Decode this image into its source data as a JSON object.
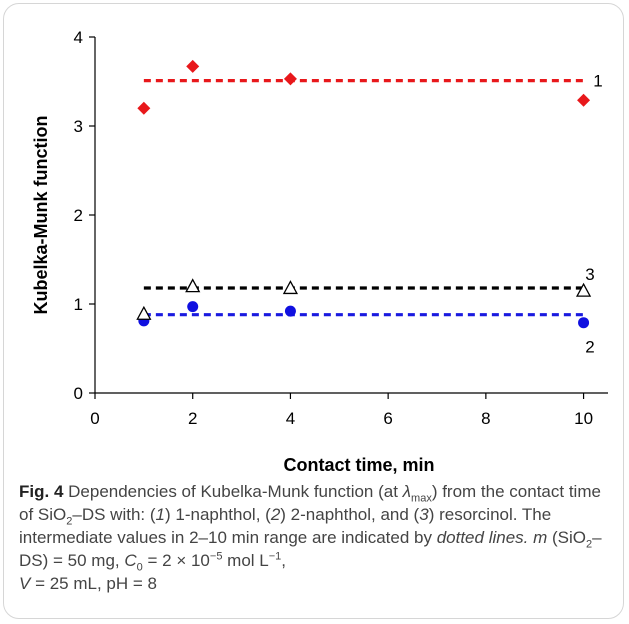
{
  "chart_data": {
    "type": "scatter",
    "xlabel": "Contact time, min",
    "ylabel": "Kubelka-Munk function",
    "xlim": [
      0,
      10.5
    ],
    "ylim": [
      0,
      4
    ],
    "x_ticks": [
      0,
      2,
      4,
      6,
      8,
      10
    ],
    "y_ticks": [
      0,
      1,
      2,
      3,
      4
    ],
    "grid": false,
    "legend": "none",
    "series": [
      {
        "name": "1",
        "marker": "diamond",
        "color": "#e8181b",
        "x": [
          1,
          2,
          4,
          10
        ],
        "y": [
          3.2,
          3.67,
          3.53,
          3.29
        ],
        "mean_line": {
          "y": 3.51,
          "x_range": [
            1,
            10
          ],
          "style": "dotted",
          "color": "#e8181b"
        }
      },
      {
        "name": "2",
        "marker": "circle",
        "color": "#1010e0",
        "x": [
          1,
          2,
          4,
          10
        ],
        "y": [
          0.81,
          0.97,
          0.92,
          0.79
        ],
        "mean_line": {
          "y": 0.88,
          "x_range": [
            1,
            10
          ],
          "style": "dotted",
          "color": "#1a1adf"
        }
      },
      {
        "name": "3",
        "marker": "triangle-open",
        "color": "#000000",
        "x": [
          1,
          2,
          4,
          10
        ],
        "y": [
          0.88,
          1.19,
          1.17,
          1.14
        ],
        "mean_line": {
          "y": 1.18,
          "x_range": [
            1,
            10
          ],
          "style": "dotted",
          "color": "#000000"
        }
      }
    ]
  },
  "caption": {
    "fig_label": "Fig. 4",
    "t1": " Dependencies of Kubelka-Munk function (at ",
    "lambda": "λ",
    "lambda_sub": "max",
    "t2": ") from the contact time of SiO",
    "sio2_sub": "2",
    "t3": "–DS with: (",
    "n1": "1",
    "t4": ") 1-naphthol, (",
    "n2": "2",
    "t5": ") 2-naphthol, and (",
    "n3": "3",
    "t6": ") resorcinol. The intermediate values in 2–10 min range are indicated by ",
    "dotted": "dotted lines.",
    "t7": " ",
    "m": "m",
    "t8": " (SiO",
    "sio2_sub2": "2",
    "t9": "–DS) = 50 mg, ",
    "c": "C",
    "c_sub": "0",
    "t10": " = 2 × 10",
    "exp1": "−5",
    "t11": " mol L",
    "exp2": "−1",
    "t12": ",",
    "v": "V",
    "t13": " = 25 mL, pH = 8"
  }
}
